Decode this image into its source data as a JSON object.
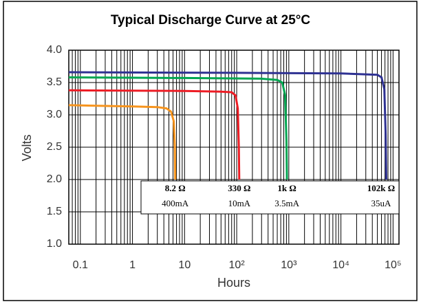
{
  "chart_data": {
    "type": "line",
    "title": "Typical Discharge Curve at 25°C",
    "xlabel": "Hours",
    "ylabel": "Volts",
    "xscale": "log",
    "grid": true,
    "xlim": [
      0.06,
      130000
    ],
    "ylim": [
      1.0,
      4.0
    ],
    "xticks": [
      0.1,
      1,
      10,
      {
        "value": 100,
        "label": "10²"
      },
      {
        "value": 1000,
        "label": "10³"
      },
      {
        "value": 10000,
        "label": "10⁴"
      },
      {
        "value": 100000,
        "label": "10⁵"
      }
    ],
    "yticks": [
      {
        "value": 1.0,
        "label": "1.0"
      },
      1.5,
      {
        "value": 2.0,
        "label": "2.0"
      },
      2.5,
      {
        "value": 3.0,
        "label": "3.0"
      },
      3.5,
      {
        "value": 4.0,
        "label": "4.0"
      }
    ],
    "series": [
      {
        "name": "8.2 Ω",
        "current": "400mA",
        "color": "#f7941d",
        "x": [
          0.06,
          1,
          3,
          4.5,
          5.5,
          6.2,
          6.5,
          6.6
        ],
        "values": [
          3.15,
          3.13,
          3.12,
          3.1,
          3.05,
          2.9,
          2.5,
          2.0
        ]
      },
      {
        "name": "330 Ω",
        "current": "10mA",
        "color": "#ed1c24",
        "x": [
          0.06,
          10,
          50,
          80,
          95,
          105,
          110,
          112
        ],
        "values": [
          3.38,
          3.37,
          3.36,
          3.35,
          3.3,
          3.1,
          2.5,
          2.0
        ]
      },
      {
        "name": "1k Ω",
        "current": "3.5mA",
        "color": "#00a651",
        "x": [
          0.06,
          10,
          300,
          600,
          750,
          850,
          900,
          920
        ],
        "values": [
          3.58,
          3.57,
          3.56,
          3.54,
          3.5,
          3.3,
          2.6,
          2.0
        ]
      },
      {
        "name": "102k Ω",
        "current": "35uA",
        "color": "#2e3192",
        "x": [
          0.06,
          100,
          10000,
          50000,
          60000,
          68000,
          72000,
          74000
        ],
        "values": [
          3.66,
          3.65,
          3.64,
          3.62,
          3.58,
          3.4,
          2.7,
          2.0
        ]
      }
    ]
  }
}
